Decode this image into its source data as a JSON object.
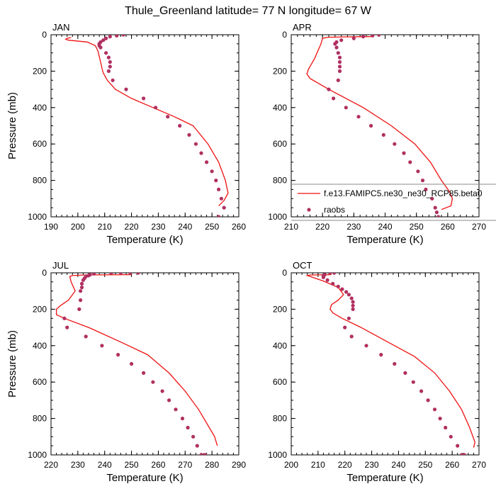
{
  "title": "Thule_Greenland  latitude= 77 N longitude= 67 W",
  "colors": {
    "model": "#ee1111",
    "obs": "#b03060",
    "axis": "#000000",
    "legend_box": "#888888"
  },
  "legend": {
    "model_label": "f.e13.FAMIPC5.ne30_ne30_RCP85.beta0",
    "obs_label": "raobs",
    "panel": "APR"
  },
  "chart_data": [
    {
      "type": "line",
      "panel": "JAN",
      "xlabel": "Temperature (K)",
      "ylabel": "Pressure (mb)",
      "xlim": [
        190,
        260
      ],
      "ylim": [
        1000,
        0
      ],
      "xticks": [
        190,
        200,
        210,
        220,
        230,
        240,
        250,
        260
      ],
      "yticks": [
        0,
        200,
        400,
        600,
        800,
        1000
      ],
      "series": [
        {
          "name": "f.e13.FAMIPC5.ne30_ne30_RCP85.beta0",
          "kind": "line",
          "x": [
            197.5,
            196.0,
            195.5,
            196.5,
            203.5,
            206.5,
            207.5,
            208.0,
            208.5,
            209.0,
            209.5,
            211.0,
            214.0,
            220.0,
            228.0,
            236.0,
            243.0,
            248.5,
            252.5,
            255.0,
            256.0,
            254.5,
            252.5
          ],
          "y": [
            15,
            20,
            25,
            30,
            40,
            60,
            90,
            120,
            150,
            185,
            210,
            250,
            300,
            350,
            400,
            450,
            500,
            600,
            700,
            800,
            870,
            910,
            940
          ]
        },
        {
          "name": "raobs",
          "kind": "scatter",
          "x": [
            217.0,
            214.5,
            212.0,
            210.5,
            209.5,
            208.5,
            208.0,
            208.0,
            208.5,
            210.5,
            211.5,
            212.0,
            212.0,
            211.5,
            213.0,
            218.0,
            224.5,
            229.0,
            233.5,
            238.0,
            241.5,
            244.0,
            246.0,
            248.0,
            250.0,
            251.5,
            252.5,
            253.5,
            254.5,
            252.5
          ],
          "y": [
            0,
            5,
            10,
            20,
            30,
            40,
            50,
            60,
            70,
            100,
            125,
            150,
            175,
            200,
            250,
            300,
            350,
            400,
            450,
            500,
            550,
            600,
            650,
            700,
            750,
            800,
            850,
            900,
            950,
            1000
          ]
        }
      ]
    },
    {
      "type": "line",
      "panel": "APR",
      "xlabel": "Temperature (K)",
      "ylabel": "",
      "xlim": [
        210,
        270
      ],
      "ylim": [
        1000,
        0
      ],
      "xticks": [
        210,
        220,
        230,
        240,
        250,
        260,
        270
      ],
      "yticks": [
        0,
        200,
        400,
        600,
        800,
        1000
      ],
      "series": [
        {
          "name": "f.e13.FAMIPC5.ne30_ne30_RCP85.beta0",
          "kind": "line",
          "x": [
            236.0,
            226.0,
            221.5,
            220.0,
            219.5,
            218.5,
            217.5,
            216.5,
            215.5,
            215.0,
            216.0,
            222.0,
            233.0,
            242.0,
            249.5,
            254.5,
            258.0,
            260.5,
            261.5,
            261.0,
            258.0
          ],
          "y": [
            10,
            12,
            14,
            20,
            50,
            90,
            130,
            160,
            190,
            215,
            240,
            300,
            400,
            500,
            600,
            700,
            800,
            860,
            900,
            940,
            960
          ]
        },
        {
          "name": "raobs",
          "kind": "scatter",
          "x": [
            238.0,
            236.0,
            233.0,
            230.0,
            226.0,
            224.5,
            224.0,
            224.5,
            225.0,
            225.5,
            225.5,
            225.5,
            225.5,
            225.0,
            222.0,
            223.5,
            227.5,
            231.5,
            235.5,
            239.5,
            243.0,
            246.0,
            248.0,
            250.5,
            252.0,
            253.0,
            255.0,
            256.0,
            256.5,
            257.0
          ],
          "y": [
            0,
            5,
            10,
            20,
            30,
            40,
            50,
            70,
            100,
            125,
            150,
            175,
            200,
            250,
            300,
            350,
            400,
            450,
            500,
            550,
            600,
            650,
            700,
            750,
            800,
            850,
            900,
            950,
            975,
            1000
          ]
        }
      ]
    },
    {
      "type": "line",
      "panel": "JUL",
      "xlabel": "Temperature (K)",
      "ylabel": "Pressure (mb)",
      "xlim": [
        220,
        290
      ],
      "ylim": [
        1000,
        0
      ],
      "xticks": [
        220,
        230,
        240,
        250,
        260,
        270,
        280,
        290
      ],
      "yticks": [
        0,
        200,
        400,
        600,
        800,
        1000
      ],
      "series": [
        {
          "name": "f.e13.FAMIPC5.ne30_ne30_RCP85.beta0",
          "kind": "line",
          "x": [
            250.0,
            232.0,
            228.0,
            227.0,
            227.5,
            229.0,
            226.5,
            223.5,
            222.0,
            222.0,
            225.0,
            234.0,
            246.0,
            256.0,
            264.0,
            270.0,
            275.0,
            279.0,
            281.0,
            282.0
          ],
          "y": [
            10,
            12,
            15,
            20,
            50,
            100,
            150,
            180,
            200,
            230,
            250,
            300,
            380,
            450,
            550,
            650,
            750,
            850,
            900,
            950
          ]
        },
        {
          "name": "raobs",
          "kind": "scatter",
          "x": [
            252.5,
            249.5,
            246.0,
            242.5,
            236.0,
            234.5,
            234.0,
            233.0,
            232.5,
            232.0,
            231.5,
            231.5,
            231.0,
            231.0,
            230.5,
            225.0,
            226.0,
            233.0,
            239.0,
            245.0,
            250.0,
            254.5,
            258.0,
            261.5,
            264.0,
            266.5,
            269.0,
            271.0,
            273.0,
            274.5,
            276.0,
            277.0,
            277.5
          ],
          "y": [
            0,
            0,
            0,
            0,
            5,
            10,
            15,
            20,
            30,
            40,
            60,
            80,
            100,
            150,
            200,
            250,
            300,
            350,
            400,
            450,
            500,
            550,
            600,
            650,
            700,
            750,
            800,
            850,
            900,
            950,
            1000,
            1000,
            1000
          ]
        }
      ]
    },
    {
      "type": "line",
      "panel": "OCT",
      "xlabel": "Temperature (K)",
      "ylabel": "",
      "xlim": [
        200,
        270
      ],
      "ylim": [
        1000,
        0
      ],
      "xticks": [
        200,
        210,
        220,
        230,
        240,
        250,
        260,
        270
      ],
      "yticks": [
        0,
        200,
        400,
        600,
        800,
        1000
      ],
      "series": [
        {
          "name": "f.e13.FAMIPC5.ne30_ne30_RCP85.beta0",
          "kind": "line",
          "x": [
            215.0,
            207.0,
            206.0,
            207.0,
            212.0,
            217.5,
            219.5,
            217.5,
            215.0,
            214.5,
            215.5,
            219.0,
            226.0,
            236.0,
            246.0,
            253.5,
            259.0,
            263.5,
            266.5,
            268.5,
            268.0
          ],
          "y": [
            10,
            12,
            15,
            20,
            45,
            80,
            120,
            150,
            175,
            200,
            220,
            250,
            300,
            380,
            460,
            550,
            650,
            750,
            850,
            930,
            960
          ]
        },
        {
          "name": "raobs",
          "kind": "scatter",
          "x": [
            216.0,
            214.5,
            212.5,
            212.0,
            212.0,
            213.5,
            215.5,
            217.5,
            219.0,
            220.5,
            221.5,
            222.5,
            223.0,
            223.0,
            223.0,
            221.5,
            220.0,
            222.5,
            228.0,
            233.5,
            238.5,
            242.5,
            245.5,
            248.5,
            251.0,
            253.5,
            255.5,
            257.5,
            259.5,
            262.0,
            263.5,
            264.5,
            264.5
          ],
          "y": [
            0,
            0,
            10,
            15,
            25,
            40,
            60,
            75,
            90,
            105,
            120,
            140,
            160,
            180,
            200,
            250,
            300,
            350,
            400,
            450,
            500,
            550,
            600,
            650,
            700,
            750,
            800,
            850,
            900,
            950,
            1000,
            1000,
            1000
          ]
        }
      ]
    }
  ]
}
